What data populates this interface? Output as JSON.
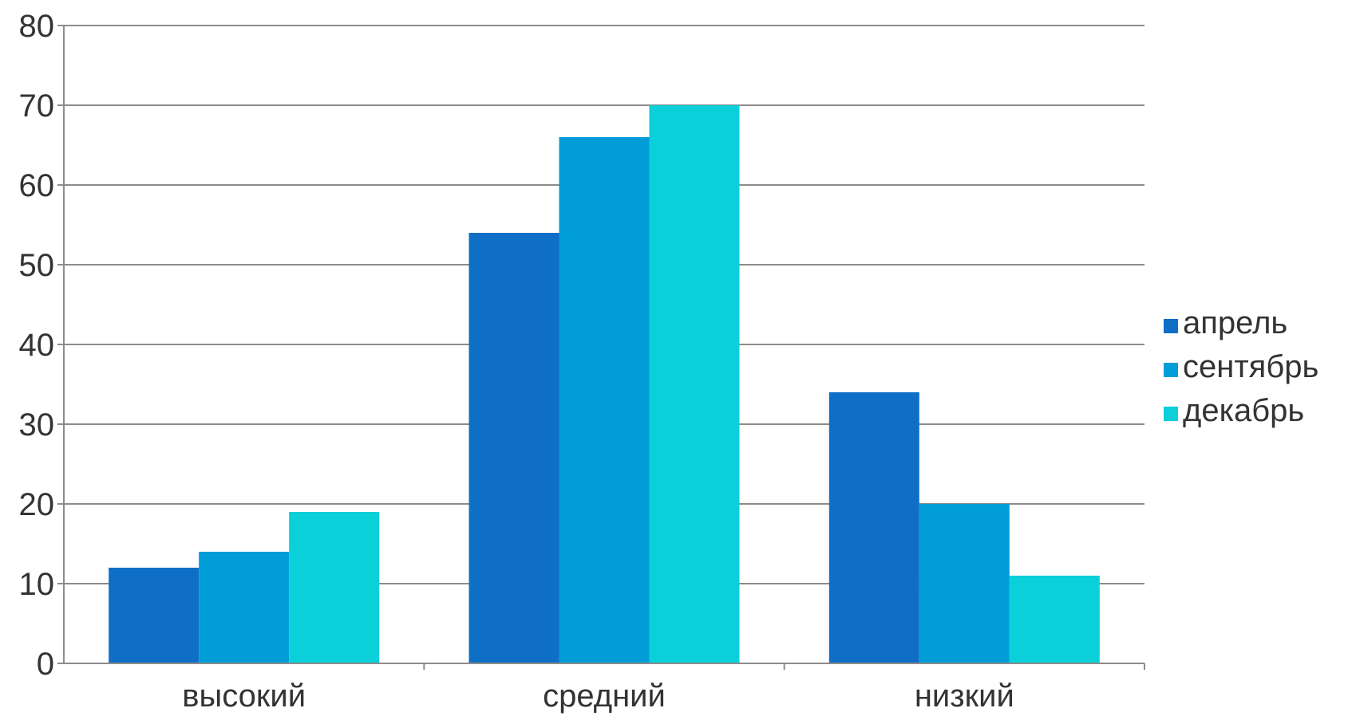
{
  "chart_data": {
    "type": "bar",
    "categories": [
      "высокий",
      "средний",
      "низкий"
    ],
    "series": [
      {
        "name": "апрель",
        "values": [
          12,
          54,
          34
        ],
        "color": "#0f6fc6"
      },
      {
        "name": "сентябрь",
        "values": [
          14,
          66,
          20
        ],
        "color": "#009dd9"
      },
      {
        "name": "декабрь",
        "values": [
          19,
          70,
          11
        ],
        "color": "#0bd0d9"
      }
    ],
    "ylim": [
      0,
      80
    ],
    "yticks": [
      "0",
      "10",
      "20",
      "30",
      "40",
      "50",
      "60",
      "70",
      "80"
    ],
    "grid": true,
    "legend_position": "right"
  }
}
